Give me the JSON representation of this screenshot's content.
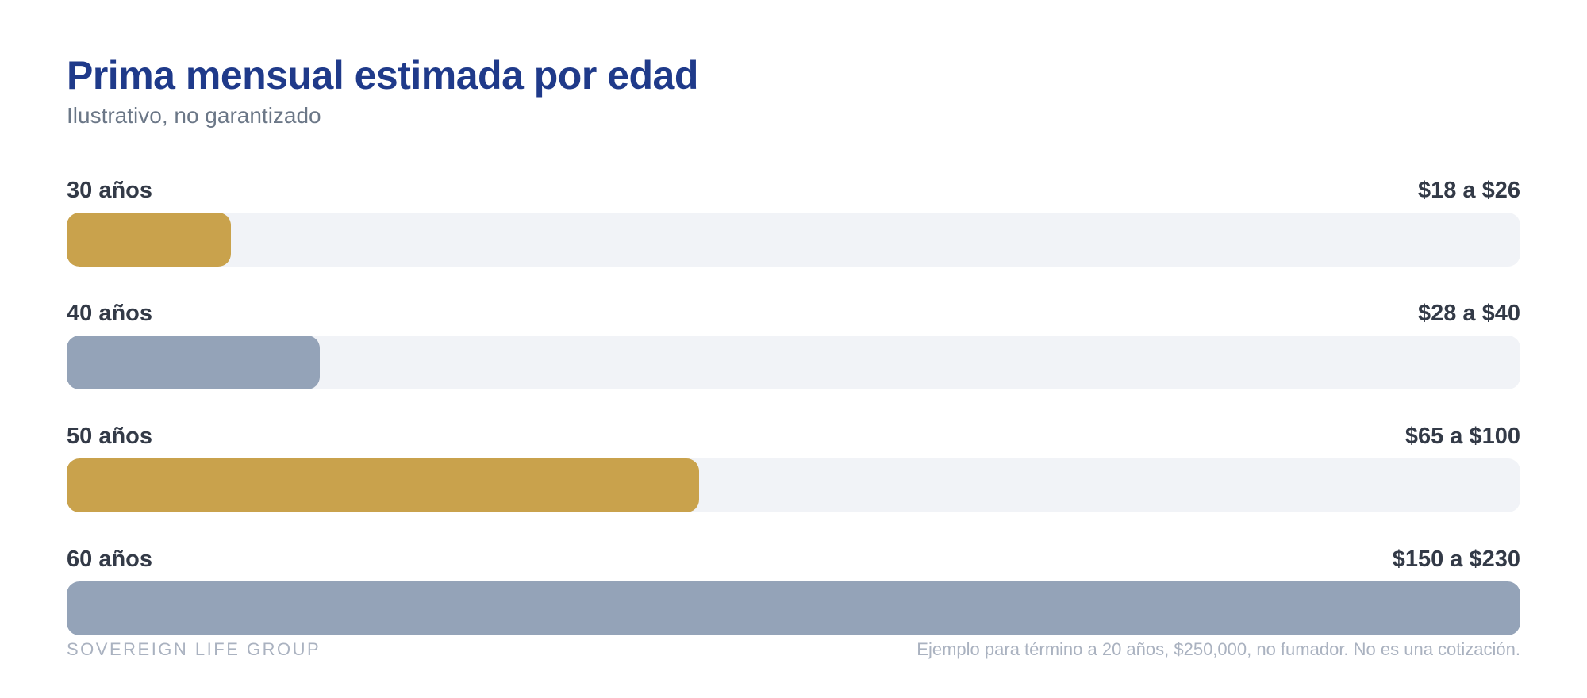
{
  "chart_data": {
    "type": "bar",
    "orientation": "horizontal",
    "title": "Prima mensual estimada por edad",
    "subtitle": "Ilustrativo, no garantizado",
    "categories": [
      "30 años",
      "40 años",
      "50 años",
      "60 años"
    ],
    "value_labels": [
      "$18 a $26",
      "$28 a $40",
      "$65 a $100",
      "$150 a $230"
    ],
    "ranges": [
      [
        18,
        26
      ],
      [
        28,
        40
      ],
      [
        65,
        100
      ],
      [
        150,
        230
      ]
    ],
    "values": [
      26,
      40,
      100,
      230
    ],
    "xlim": [
      0,
      230
    ],
    "grid": false,
    "colors": [
      "#c9a24c",
      "#94a3b8",
      "#c9a24c",
      "#94a3b8"
    ],
    "track_color": "#f1f3f7"
  },
  "footer": {
    "brand": "SOVEREIGN LIFE GROUP",
    "note": "Ejemplo para término a 20 años, $250,000, no fumador. No es una cotización."
  },
  "colors": {
    "title": "#1f3a8a",
    "subtitle": "#6b7787",
    "label": "#333a47",
    "footer": "#aab2c0"
  }
}
